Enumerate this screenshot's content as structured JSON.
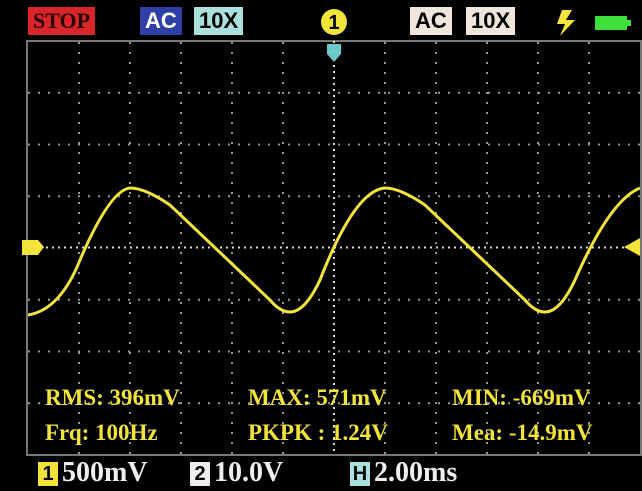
{
  "status": "STOP",
  "ch1_coupling": "AC",
  "ch1_probe": "10X",
  "trigger_channel": "1",
  "ch2_coupling": "AC",
  "ch2_probe": "10X",
  "measurements": {
    "rms": "RMS: 396mV",
    "max": "MAX: 571mV",
    "min": "MIN: -669mV",
    "frq": "Frq: 100Hz",
    "pkpk": "PKPK : 1.24V",
    "mea": "Mea: -14.9mV"
  },
  "footer": {
    "ch1_label": "1",
    "ch1_scale": "500mV",
    "ch2_label": "2",
    "ch2_scale": "10.0V",
    "h_label": "H",
    "h_scale": "2.00ms"
  }
}
